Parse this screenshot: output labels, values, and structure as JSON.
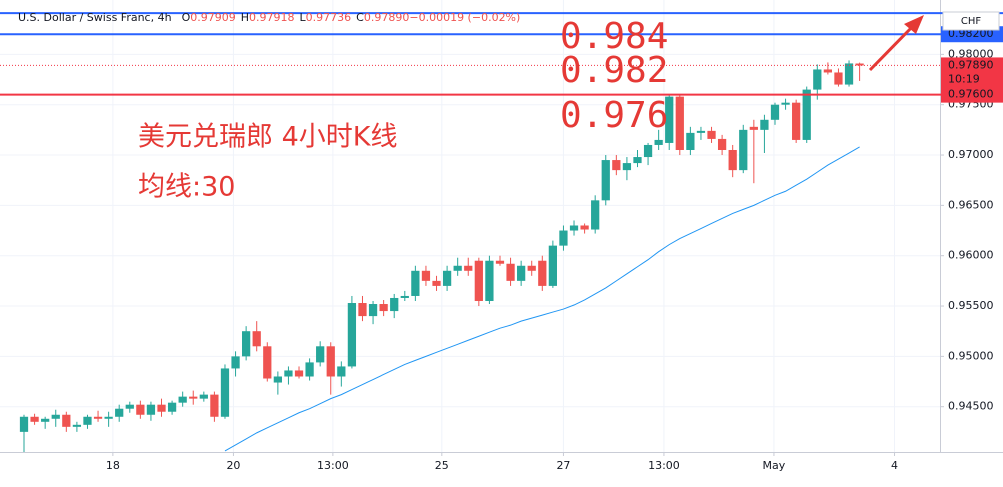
{
  "chart_data": {
    "type": "candlestick",
    "title": "U.S. Dollar / Swiss Franc, 4h",
    "ohlc_legend": [
      {
        "key": "O",
        "text": "0.97909"
      },
      {
        "key": "H",
        "text": "0.97918"
      },
      {
        "key": "L",
        "text": "0.97736"
      },
      {
        "key": "C",
        "text": "0.97890"
      },
      {
        "key": "",
        "text": "−0.00019 (−0.02%)"
      }
    ],
    "currency": "CHF",
    "up_color": "#26a69a",
    "down_color": "#ef5350",
    "x": [
      0,
      1,
      2,
      3,
      4,
      5,
      6,
      7,
      8,
      9,
      10,
      11,
      12,
      13,
      14,
      15,
      16,
      17,
      18,
      19,
      20,
      21,
      22,
      23,
      24,
      25,
      26,
      27,
      28,
      29,
      30,
      31,
      32,
      33,
      34,
      35,
      36,
      37,
      38,
      39,
      40,
      41,
      42,
      43,
      44,
      45,
      46,
      47,
      48,
      49,
      50,
      51,
      52,
      53,
      54,
      55,
      56,
      57,
      58,
      59,
      60,
      61,
      62,
      63,
      64,
      65,
      66,
      67,
      68,
      69,
      70,
      71,
      72,
      73,
      74,
      75,
      76,
      77,
      78,
      79
    ],
    "open": [
      0.9425,
      0.944,
      0.9435,
      0.9438,
      0.9442,
      0.943,
      0.9432,
      0.944,
      0.9438,
      0.944,
      0.9448,
      0.9452,
      0.9442,
      0.9452,
      0.9445,
      0.9454,
      0.946,
      0.9458,
      0.9462,
      0.944,
      0.9488,
      0.95,
      0.9525,
      0.951,
      0.9474,
      0.948,
      0.9486,
      0.948,
      0.9494,
      0.951,
      0.948,
      0.949,
      0.9553,
      0.954,
      0.9552,
      0.9545,
      0.9558,
      0.956,
      0.9585,
      0.9575,
      0.957,
      0.9585,
      0.959,
      0.9595,
      0.9555,
      0.9595,
      0.9592,
      0.9575,
      0.959,
      0.9595,
      0.957,
      0.961,
      0.9625,
      0.963,
      0.9626,
      0.9655,
      0.9695,
      0.9685,
      0.9692,
      0.9698,
      0.971,
      0.9712,
      0.9758,
      0.9705,
      0.9722,
      0.9724,
      0.9716,
      0.9705,
      0.9685,
      0.9728,
      0.9725,
      0.9735,
      0.975,
      0.9752,
      0.9715,
      0.9765,
      0.9785,
      0.9782,
      0.977,
      0.97909
    ],
    "high": [
      0.9442,
      0.9443,
      0.944,
      0.9447,
      0.9445,
      0.9435,
      0.9442,
      0.9446,
      0.9445,
      0.9452,
      0.9455,
      0.9456,
      0.9455,
      0.9458,
      0.9456,
      0.9465,
      0.9466,
      0.9465,
      0.9465,
      0.9492,
      0.9505,
      0.953,
      0.9535,
      0.9514,
      0.9485,
      0.949,
      0.949,
      0.9498,
      0.9515,
      0.9514,
      0.9495,
      0.956,
      0.956,
      0.9555,
      0.9556,
      0.9562,
      0.9565,
      0.959,
      0.959,
      0.958,
      0.959,
      0.9598,
      0.9598,
      0.9598,
      0.96,
      0.96,
      0.9598,
      0.9595,
      0.9595,
      0.96,
      0.9615,
      0.963,
      0.9635,
      0.9632,
      0.966,
      0.97,
      0.97,
      0.9698,
      0.9705,
      0.9712,
      0.9725,
      0.976,
      0.976,
      0.9728,
      0.9728,
      0.9728,
      0.972,
      0.971,
      0.973,
      0.9735,
      0.974,
      0.9752,
      0.9756,
      0.9755,
      0.9768,
      0.979,
      0.9792,
      0.9786,
      0.9794,
      0.97918
    ],
    "low": [
      0.9405,
      0.9432,
      0.9428,
      0.943,
      0.9425,
      0.9425,
      0.9428,
      0.9435,
      0.943,
      0.9435,
      0.9444,
      0.9438,
      0.9436,
      0.944,
      0.9442,
      0.945,
      0.9452,
      0.9455,
      0.9435,
      0.9438,
      0.948,
      0.9496,
      0.9505,
      0.9475,
      0.9462,
      0.9472,
      0.9478,
      0.9476,
      0.949,
      0.9462,
      0.947,
      0.9488,
      0.9535,
      0.9532,
      0.954,
      0.9538,
      0.9555,
      0.9555,
      0.957,
      0.9565,
      0.9565,
      0.958,
      0.958,
      0.955,
      0.9552,
      0.959,
      0.957,
      0.957,
      0.958,
      0.9565,
      0.9568,
      0.9605,
      0.962,
      0.9622,
      0.9622,
      0.965,
      0.968,
      0.9675,
      0.9688,
      0.969,
      0.9705,
      0.9705,
      0.97,
      0.97,
      0.9715,
      0.9712,
      0.97,
      0.9678,
      0.9682,
      0.9672,
      0.9702,
      0.973,
      0.9745,
      0.9712,
      0.9712,
      0.9755,
      0.978,
      0.9768,
      0.9768,
      0.97736
    ],
    "close": [
      0.944,
      0.9435,
      0.9438,
      0.9442,
      0.943,
      0.9432,
      0.944,
      0.9438,
      0.944,
      0.9448,
      0.9452,
      0.9442,
      0.9452,
      0.9445,
      0.9454,
      0.946,
      0.9458,
      0.9462,
      0.944,
      0.9488,
      0.95,
      0.9525,
      0.951,
      0.9478,
      0.948,
      0.9486,
      0.948,
      0.9494,
      0.951,
      0.948,
      0.949,
      0.9553,
      0.954,
      0.9552,
      0.9545,
      0.9558,
      0.956,
      0.9585,
      0.9575,
      0.957,
      0.9585,
      0.959,
      0.9585,
      0.9555,
      0.9595,
      0.9592,
      0.9575,
      0.959,
      0.9585,
      0.957,
      0.961,
      0.9625,
      0.963,
      0.9626,
      0.9655,
      0.9695,
      0.9685,
      0.9692,
      0.9698,
      0.971,
      0.9715,
      0.9758,
      0.9705,
      0.9722,
      0.9724,
      0.9716,
      0.9705,
      0.9685,
      0.9725,
      0.9725,
      0.9735,
      0.975,
      0.9752,
      0.9715,
      0.9765,
      0.9785,
      0.9782,
      0.977,
      0.9791,
      0.9789
    ],
    "ma": {
      "color": "#2196f3",
      "values": [
        null,
        null,
        null,
        null,
        null,
        null,
        null,
        null,
        null,
        null,
        null,
        null,
        null,
        null,
        null,
        null,
        null,
        null,
        null,
        0.9406,
        0.9412,
        0.9418,
        0.9424,
        0.9429,
        0.9434,
        0.9439,
        0.9444,
        0.9448,
        0.9453,
        0.9458,
        0.9462,
        0.9467,
        0.9472,
        0.9477,
        0.9482,
        0.9487,
        0.9492,
        0.9496,
        0.95,
        0.9504,
        0.9508,
        0.9512,
        0.9516,
        0.952,
        0.9524,
        0.9528,
        0.9531,
        0.9535,
        0.9538,
        0.9541,
        0.9544,
        0.9547,
        0.9551,
        0.9556,
        0.9562,
        0.9568,
        0.9575,
        0.9582,
        0.9589,
        0.9596,
        0.9604,
        0.9611,
        0.9617,
        0.9622,
        0.9627,
        0.9632,
        0.9637,
        0.9642,
        0.9646,
        0.965,
        0.9655,
        0.966,
        0.9664,
        0.967,
        0.9676,
        0.9683,
        0.969,
        0.9696,
        0.9702,
        0.9708
      ]
    },
    "xlim": [
      -2.27,
      86.6
    ],
    "xticks": [
      {
        "value": 8.4,
        "label": "18"
      },
      {
        "value": 19.8,
        "label": "20"
      },
      {
        "value": 29.2,
        "label": "13:00"
      },
      {
        "value": 39.5,
        "label": "25"
      },
      {
        "value": 51.0,
        "label": "27"
      },
      {
        "value": 60.5,
        "label": "13:00"
      },
      {
        "value": 70.9,
        "label": "May"
      },
      {
        "value": 82.3,
        "label": "4"
      }
    ],
    "ylim": [
      0.9405,
      0.9854
    ],
    "yticks": [
      {
        "value": 0.945,
        "label": "0.94500"
      },
      {
        "value": 0.95,
        "label": "0.95000"
      },
      {
        "value": 0.955,
        "label": "0.95500"
      },
      {
        "value": 0.96,
        "label": "0.96000"
      },
      {
        "value": 0.965,
        "label": "0.96500"
      },
      {
        "value": 0.97,
        "label": "0.97000"
      },
      {
        "value": 0.975,
        "label": "0.97500"
      },
      {
        "value": 0.98,
        "label": "0.98000"
      }
    ],
    "grid": true,
    "hlines": [
      {
        "value": 0.9841,
        "color": "#2962ff"
      },
      {
        "value": 0.982,
        "color": "#2962ff",
        "label": "0.98200"
      },
      {
        "value": 0.976,
        "color": "#f23645",
        "label": "0.97600"
      }
    ],
    "last_price": {
      "value": 0.9789,
      "label": "0.97890",
      "countdown": "10:19",
      "color": "#f23645"
    },
    "annotations": [
      "0.984",
      "0.982",
      "0.976",
      "美元兑瑞郎 4小时K线",
      "均线:30"
    ]
  }
}
